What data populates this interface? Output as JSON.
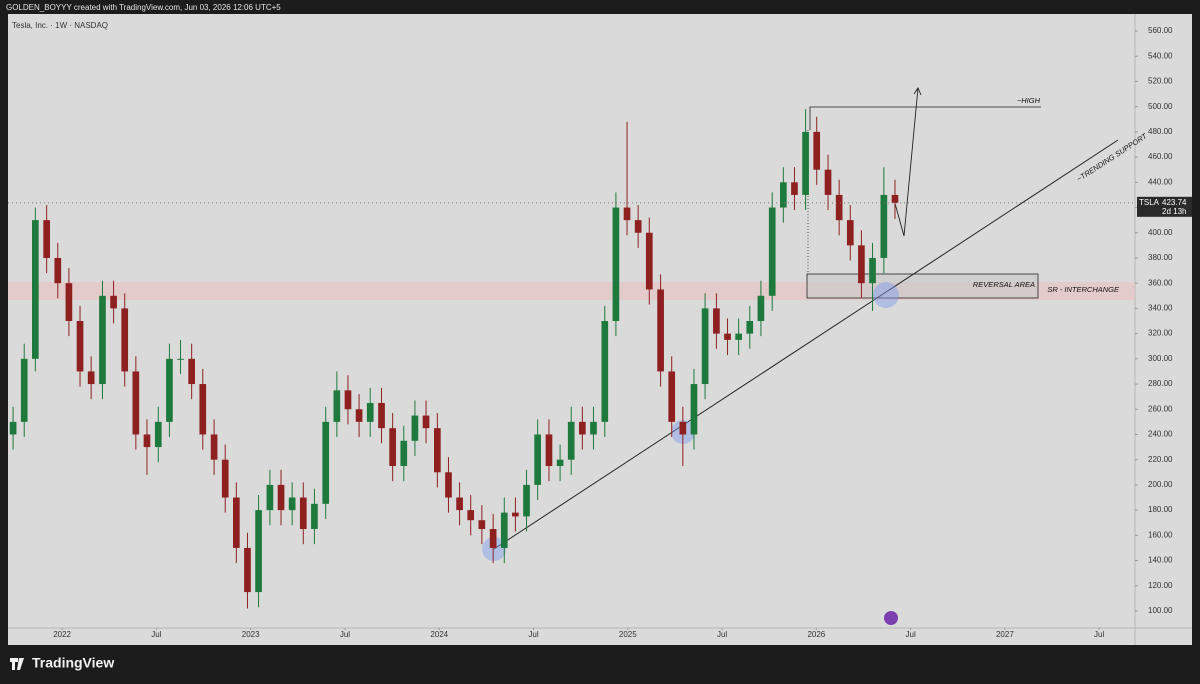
{
  "chart_data": {
    "type": "candlestick",
    "header": "GOLDEN_BOYYY created with TradingView.com, Jun 03, 2026 12:06 UTC+5",
    "title": "Tesla, Inc. · 1W · NASDAQ",
    "brand": "TradingView",
    "annotations": [
      "~HIGH",
      "~TRENDING SUPPORT",
      "REVERSAL AREA",
      "SR - INTERCHANGE"
    ],
    "last_price": {
      "symbol": "TSLA",
      "value": 423.74,
      "countdown": "2d 13h"
    },
    "up_color": "#1e7a3c",
    "down_color": "#8e2020",
    "grid": false,
    "x": [
      2021.74,
      2021.799,
      2021.858,
      2021.918,
      2021.977,
      2022.036,
      2022.095,
      2022.154,
      2022.214,
      2022.273,
      2022.332,
      2022.391,
      2022.45,
      2022.51,
      2022.569,
      2022.628,
      2022.687,
      2022.746,
      2022.806,
      2022.865,
      2022.924,
      2022.983,
      2023.042,
      2023.102,
      2023.161,
      2023.22,
      2023.279,
      2023.338,
      2023.398,
      2023.457,
      2023.516,
      2023.575,
      2023.634,
      2023.694,
      2023.753,
      2023.812,
      2023.871,
      2023.93,
      2023.99,
      2024.049,
      2024.108,
      2024.167,
      2024.226,
      2024.286,
      2024.345,
      2024.404,
      2024.463,
      2024.522,
      2024.582,
      2024.641,
      2024.7,
      2024.759,
      2024.818,
      2024.878,
      2024.937,
      2024.996,
      2025.055,
      2025.114,
      2025.174,
      2025.233,
      2025.292,
      2025.351,
      2025.41,
      2025.47,
      2025.529,
      2025.588,
      2025.647,
      2025.706,
      2025.766,
      2025.825,
      2025.884,
      2025.943,
      2026.002,
      2026.062,
      2026.121,
      2026.18,
      2026.239,
      2026.298,
      2026.358,
      2026.417
    ],
    "open": [
      240,
      250,
      300,
      410,
      380,
      360,
      330,
      290,
      280,
      350,
      340,
      290,
      240,
      230,
      250,
      300,
      300,
      280,
      240,
      220,
      190,
      150,
      115,
      180,
      200,
      180,
      190,
      165,
      185,
      250,
      275,
      260,
      250,
      265,
      245,
      215,
      235,
      255,
      245,
      210,
      190,
      180,
      172,
      165,
      150,
      178,
      175,
      200,
      240,
      215,
      220,
      250,
      240,
      250,
      330,
      420,
      410,
      400,
      355,
      290,
      250,
      240,
      280,
      340,
      320,
      315,
      320,
      330,
      350,
      420,
      440,
      430,
      480,
      450,
      430,
      410,
      390,
      360,
      380,
      430
    ],
    "high": [
      262,
      312,
      420,
      422,
      392,
      372,
      342,
      302,
      362,
      362,
      352,
      302,
      252,
      262,
      312,
      315,
      312,
      292,
      252,
      232,
      202,
      162,
      192,
      212,
      212,
      202,
      202,
      197,
      262,
      290,
      287,
      272,
      277,
      277,
      257,
      247,
      267,
      267,
      257,
      222,
      202,
      192,
      184,
      177,
      190,
      190,
      212,
      252,
      252,
      232,
      262,
      262,
      262,
      342,
      432,
      488,
      422,
      412,
      367,
      302,
      262,
      292,
      352,
      352,
      332,
      332,
      342,
      362,
      432,
      452,
      452,
      498,
      492,
      462,
      442,
      422,
      402,
      392,
      452,
      442
    ],
    "low": [
      228,
      238,
      290,
      368,
      348,
      318,
      278,
      268,
      268,
      328,
      278,
      228,
      208,
      218,
      238,
      288,
      268,
      228,
      208,
      178,
      138,
      102,
      103,
      168,
      168,
      168,
      153,
      153,
      173,
      238,
      248,
      238,
      238,
      233,
      203,
      203,
      223,
      233,
      198,
      178,
      168,
      160,
      153,
      138,
      138,
      163,
      163,
      188,
      203,
      203,
      208,
      228,
      228,
      238,
      318,
      398,
      388,
      343,
      278,
      238,
      215,
      228,
      268,
      308,
      303,
      303,
      308,
      318,
      338,
      408,
      418,
      418,
      438,
      418,
      398,
      378,
      348,
      338,
      368,
      411
    ],
    "close": [
      250,
      300,
      410,
      380,
      360,
      330,
      290,
      280,
      350,
      340,
      290,
      240,
      230,
      250,
      300,
      300,
      280,
      240,
      220,
      190,
      150,
      115,
      180,
      200,
      180,
      190,
      165,
      185,
      250,
      275,
      260,
      250,
      265,
      245,
      215,
      235,
      255,
      245,
      210,
      190,
      180,
      172,
      165,
      150,
      178,
      175,
      200,
      240,
      215,
      220,
      250,
      240,
      250,
      330,
      420,
      410,
      400,
      355,
      290,
      250,
      240,
      280,
      340,
      320,
      315,
      320,
      330,
      350,
      420,
      440,
      430,
      480,
      450,
      430,
      410,
      390,
      360,
      380,
      430,
      423.74
    ],
    "xlim": [
      2021.713,
      2027.69
    ],
    "ylim": [
      86.5,
      573.5
    ],
    "xticks": [
      2022,
      {
        "value": 2022.5,
        "label": "Jul"
      },
      2023,
      {
        "value": 2023.5,
        "label": "Jul"
      },
      2024,
      {
        "value": 2024.5,
        "label": "Jul"
      },
      2025,
      {
        "value": 2025.5,
        "label": "Jul"
      },
      2026,
      {
        "value": 2026.5,
        "label": "Jul"
      },
      2027,
      {
        "value": 2027.5,
        "label": "Jul"
      }
    ],
    "yticks": [
      {
        "value": 100,
        "label": "100.00"
      },
      {
        "value": 120,
        "label": "120.00"
      },
      {
        "value": 140,
        "label": "140.00"
      },
      {
        "value": 160,
        "label": "160.00"
      },
      {
        "value": 180,
        "label": "180.00"
      },
      {
        "value": 200,
        "label": "200.00"
      },
      {
        "value": 220,
        "label": "220.00"
      },
      {
        "value": 240,
        "label": "240.00"
      },
      {
        "value": 260,
        "label": "260.00"
      },
      {
        "value": 280,
        "label": "280.00"
      },
      {
        "value": 300,
        "label": "300.00"
      },
      {
        "value": 320,
        "label": "320.00"
      },
      {
        "value": 340,
        "label": "340.00"
      },
      {
        "value": 360,
        "label": "360.00"
      },
      {
        "value": 380,
        "label": "380.00"
      },
      {
        "value": 400,
        "label": "400.00"
      },
      {
        "value": 420,
        "label": "420.00"
      },
      {
        "value": 440,
        "label": "440.00"
      },
      {
        "value": 460,
        "label": "460.00"
      },
      {
        "value": 480,
        "label": "480.00"
      },
      {
        "value": 500,
        "label": "500.00"
      },
      {
        "value": 520,
        "label": "520.00"
      },
      {
        "value": 540,
        "label": "540.00"
      },
      {
        "value": 560,
        "label": "560.00"
      }
    ]
  }
}
